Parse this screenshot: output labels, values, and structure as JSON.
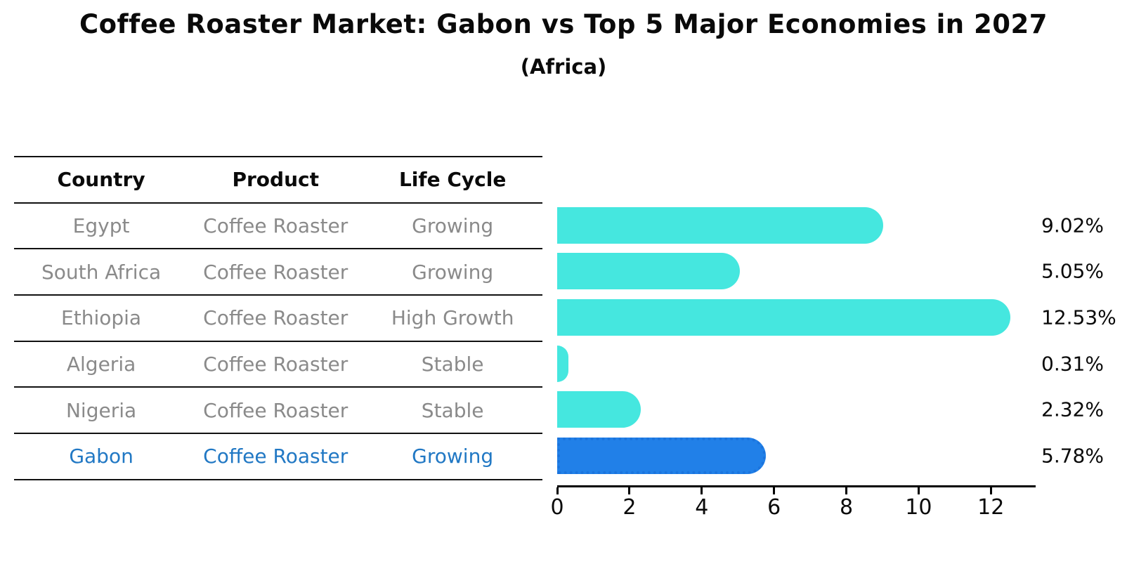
{
  "chart_data": {
    "type": "bar",
    "orientation": "horizontal",
    "title": "Coffee Roaster Market: Gabon vs Top 5 Major Economies in 2027",
    "subtitle": "(Africa)",
    "categories": [
      "Egypt",
      "South Africa",
      "Ethiopia",
      "Algeria",
      "Nigeria",
      "Gabon"
    ],
    "values": [
      9.02,
      5.05,
      12.53,
      0.31,
      2.32,
      5.78
    ],
    "value_labels": [
      "9.02%",
      "5.05%",
      "12.53%",
      "0.31%",
      "2.32%",
      "5.78%"
    ],
    "xticks": [
      0,
      2,
      4,
      6,
      8,
      10,
      12
    ],
    "xlim": [
      0,
      13.2
    ],
    "xlabel": "",
    "ylabel": "",
    "grid": false,
    "legend": "none",
    "highlight_index": 5,
    "highlight_category": "Gabon"
  },
  "table": {
    "headers": [
      "Country",
      "Product",
      "Life Cycle"
    ],
    "rows": [
      {
        "country": "Egypt",
        "product": "Coffee Roaster",
        "life_cycle": "Growing"
      },
      {
        "country": "South Africa",
        "product": "Coffee Roaster",
        "life_cycle": "Growing"
      },
      {
        "country": "Ethiopia",
        "product": "Coffee Roaster",
        "life_cycle": "High Growth"
      },
      {
        "country": "Algeria",
        "product": "Coffee Roaster",
        "life_cycle": "Stable"
      },
      {
        "country": "Nigeria",
        "product": "Coffee Roaster",
        "life_cycle": "Stable"
      },
      {
        "country": "Gabon",
        "product": "Coffee Roaster",
        "life_cycle": "Growing"
      }
    ],
    "highlight_row_index": 5
  },
  "colors": {
    "bar": "#45e7df",
    "highlight_bar": "#2180e8",
    "highlight_border": "#1b74dd",
    "accent": "#2178c4",
    "row_text": "#8a8a8a",
    "ink": "#0a0a0a"
  }
}
